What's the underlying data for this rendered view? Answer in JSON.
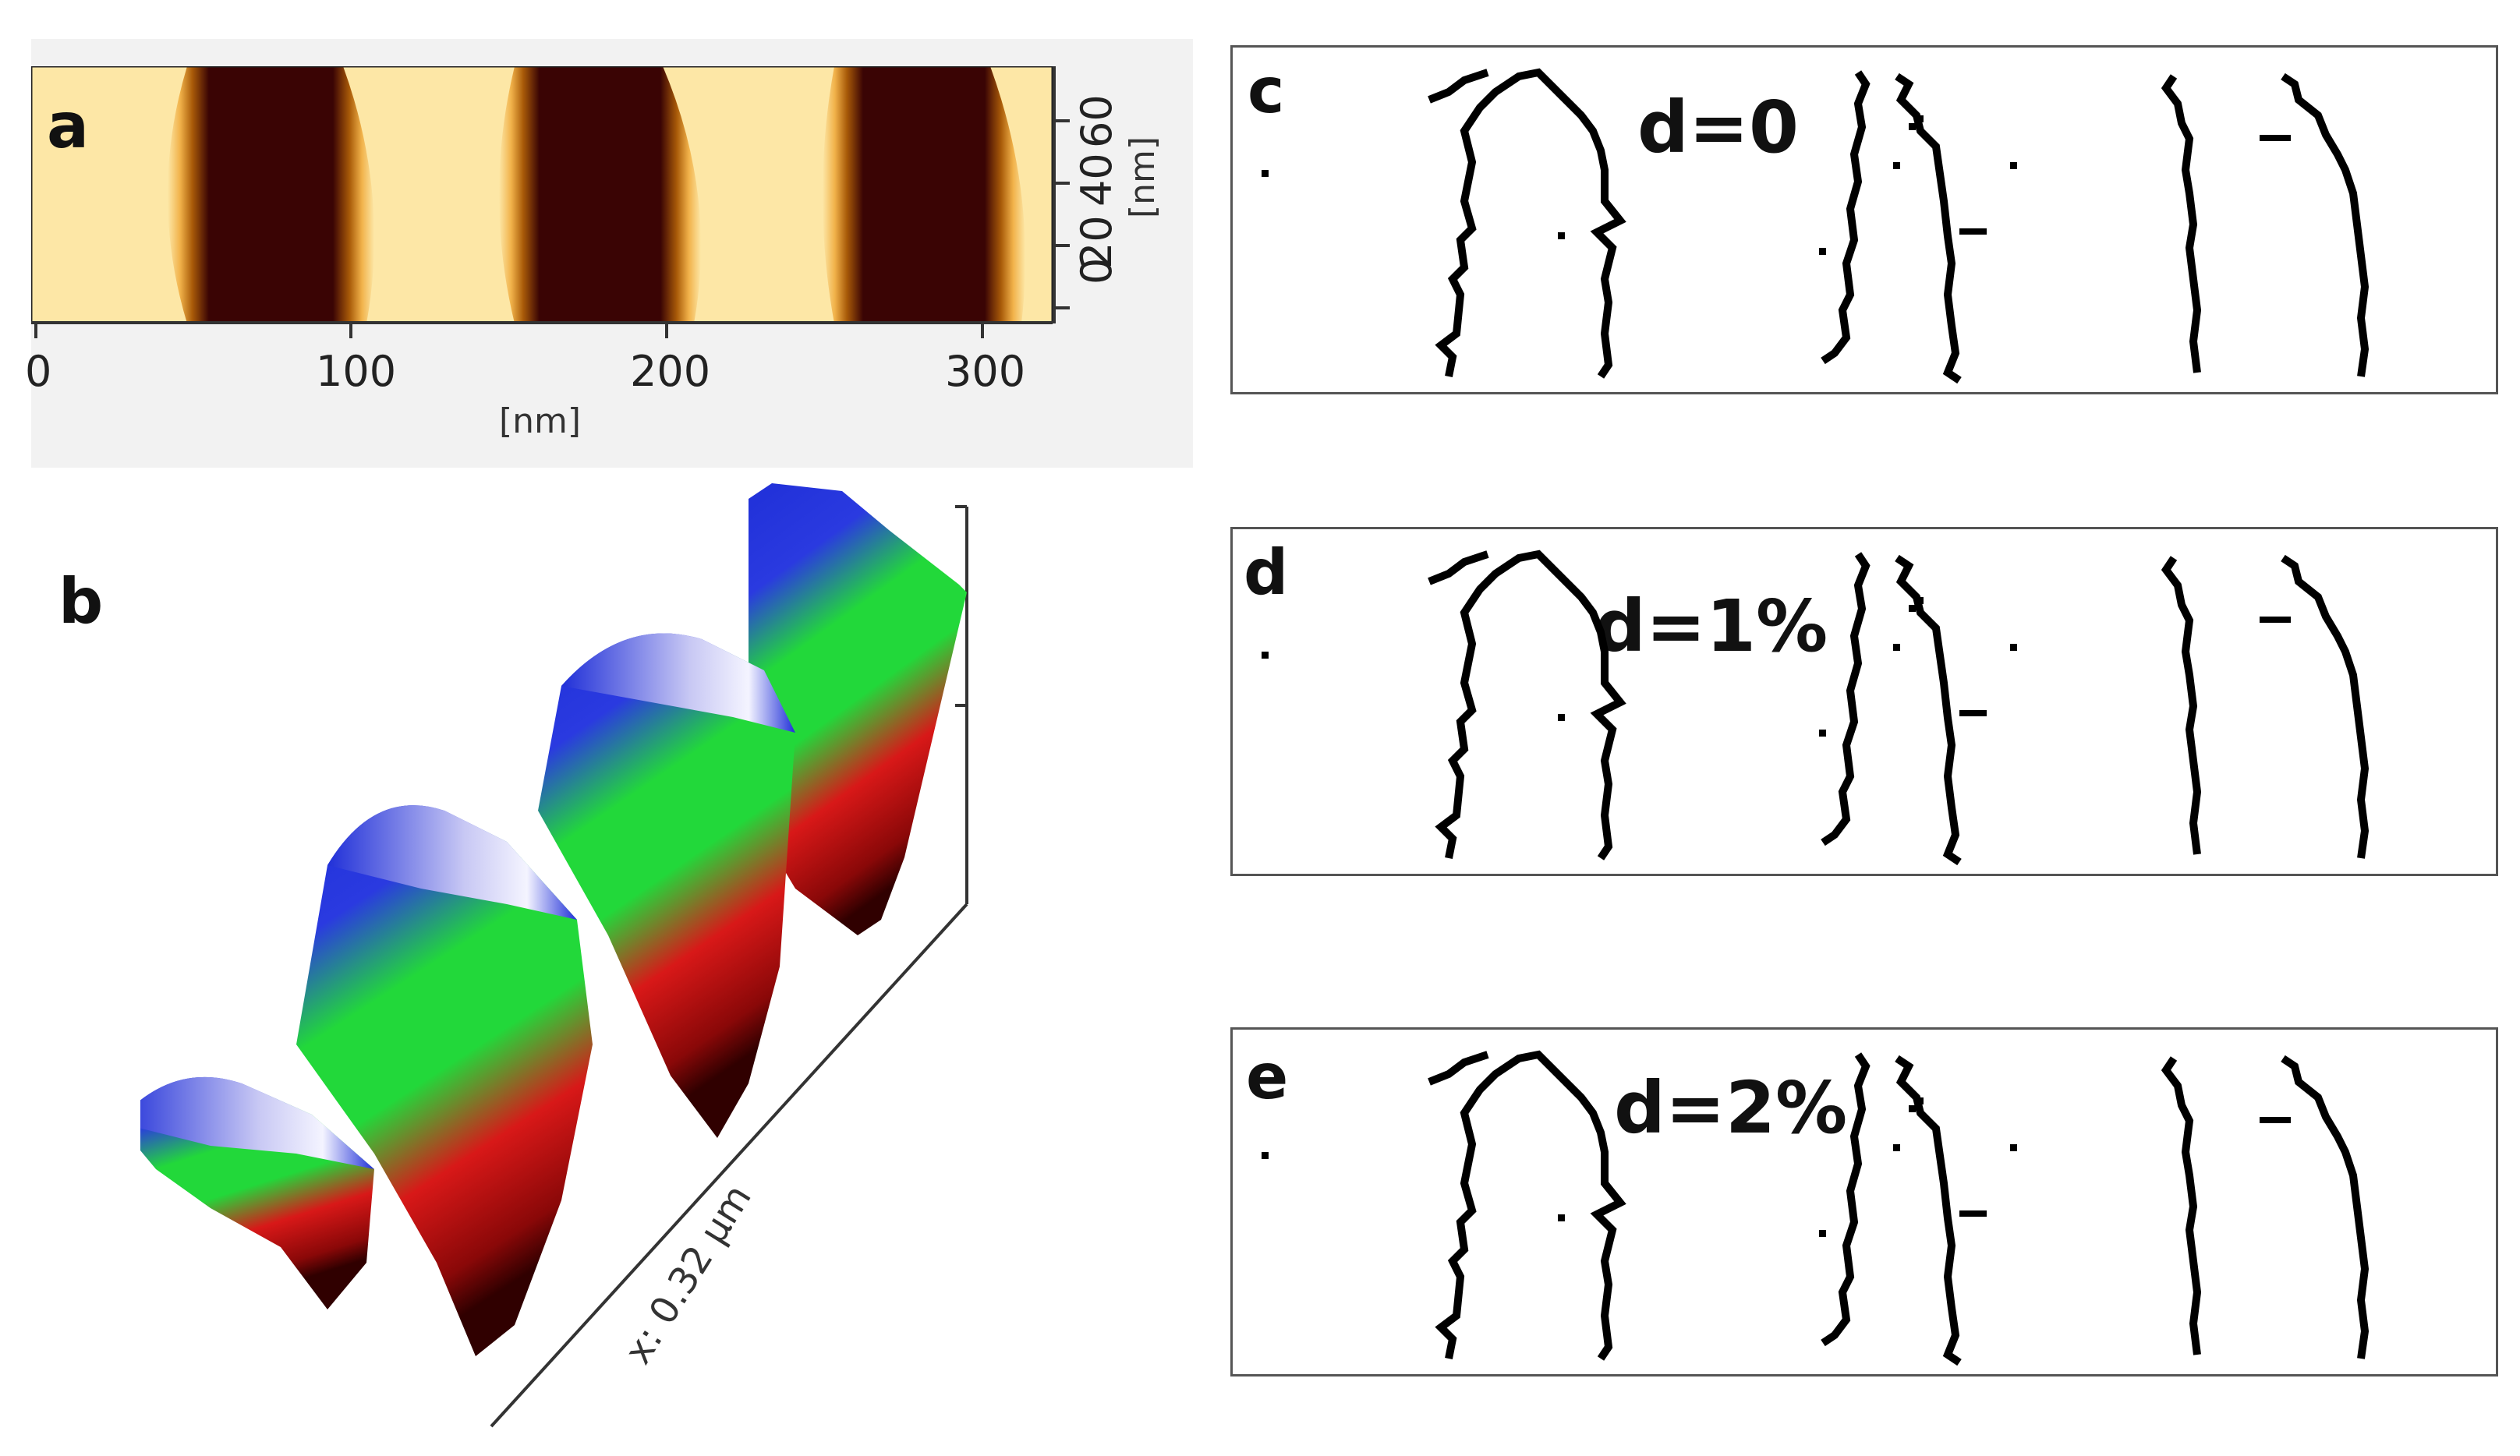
{
  "panels": {
    "a": {
      "letter": "a",
      "x_ticks": [
        "0",
        "100",
        "200",
        "300"
      ],
      "x_unit": "[nm]",
      "y_ticks": [
        "0",
        "20",
        "40",
        "60"
      ],
      "y_unit": "[nm]",
      "colors": {
        "light": "#fde7a6",
        "dark": "#3a0404",
        "edge": "#c07a10"
      }
    },
    "b": {
      "letter": "b",
      "axis_label": "x: 0.32 µm",
      "colors": {
        "blue": "#2030d8",
        "green": "#22d83a",
        "red": "#d81818",
        "white": "#f4f4ff"
      }
    },
    "c": {
      "letter": "c",
      "label": "d=0"
    },
    "d": {
      "letter": "d",
      "label": "d=1%"
    },
    "e": {
      "letter": "e",
      "label": "d=2%"
    }
  }
}
